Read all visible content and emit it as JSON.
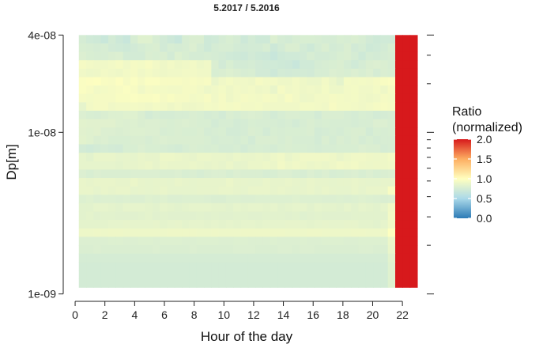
{
  "chart_data": {
    "type": "heatmap",
    "title": "5.2017 / 5.2016",
    "xlabel": "Hour of the day",
    "ylabel": "Dp[m]",
    "xlim": [
      -0.8,
      23.8
    ],
    "x_range": [
      0.25,
      23
    ],
    "x_ticks": [
      0,
      2,
      4,
      6,
      8,
      10,
      12,
      14,
      16,
      18,
      20,
      22
    ],
    "y_scale": "log",
    "ylim": [
      9e-10,
      4.7e-08
    ],
    "y_range": [
      1.1e-09,
      4e-08
    ],
    "y_ticks": [
      {
        "value": 4e-08,
        "label": "4e-08"
      },
      {
        "value": 1e-08,
        "label": "1e-08"
      },
      {
        "value": 1e-09,
        "label": "1e-09"
      }
    ],
    "grid": false,
    "colormap": "RdYlBu (reversed)",
    "colorscale": [
      {
        "value": 0.0,
        "color": "#2c7bb6"
      },
      {
        "value": 0.5,
        "color": "#abd9e9"
      },
      {
        "value": 1.0,
        "color": "#ffffbf"
      },
      {
        "value": 1.5,
        "color": "#fdae61"
      },
      {
        "value": 2.0,
        "color": "#d7191c"
      }
    ],
    "legend": {
      "title_line1": "Ratio",
      "title_line2": "(normalized)",
      "ticks": [
        "2.0",
        "1.5",
        "1.0",
        "0.5",
        "0.0"
      ],
      "range": [
        0,
        2
      ],
      "placement": "right"
    },
    "time_columns": 46,
    "size_rows": 30,
    "matrix_rows": [
      "4b4847444a46434c51514c4946434c4e4e47484b4d4b464a47474f4b4a4c4d4d4c4b4b4d4c4e4c49474848",
      "4d4c4b4c494847494b4d4e494c4b4c4f4b474b4c4c4a494a4a4c464a4e4e4a474b4e4a4b4e494b47484a4d",
      "4f4d4c4c4e4f4a4a4a4e4d4e4a504d4b4b4c4b4a48474649474643474848494c4a4a4b4d4e4b474b4a4b4c",
      "5e5c5b5b5c5e5b5e5d5f5c5a5c5a5b5c595b4e494d4a4a4b49484847464348484b4c4d4e4b484b4e4f4e4c",
      "5b595a5c5b5a5c5e5b5d5b5a5b5b5c5c5b5b4d4e504e4c4d4949464a494a4a494c4c4f4e4d4f4d4f4b4e4d",
      "616263605f625e615e61615f5f5f5e5f5e5f575b5d5b5b5a5e5c5c5a5a5c5a58585c58545d5c5d5c5e6061",
      "615f5c5d5e5f615f5b5e5d5d5c5c5e5e5c595b5d5a5c5b5c5a5b575e5b5c5a5b5a5d59595c5d5b5b5d5a5e",
      "5e5d5e5e5e6060616060615e605e5e5c5d5f5b5e5a5c5e5d5c5e5d5b5f5c595a5c5c5e5d5c5d5b5a5b5e5d",
      "555c5e5e5b5c5c5d5c5b5d5c5a5c5a5a5b5d5c5e5d5e5c5c5d5b5b5b5b5b5d5d5c5b5f5d5d5c5b5c5e5f5e",
      "4f4d4c4e505051514e4a4c4b4b4c4c4e4d4b4c4a4e4c4e4f4e4c4a4c4e4e4d4d4a4e4e4e4c4b4d4c4a4b4c",
      "5352525252504f504e4f4f4e4d4e4f4e4d4d4a4c4c4a4b4d4c4c4c4b4c4a4c4e4c4d4c4c4c4b4c4c4f4f4d",
      "5251524f4f4e4f50504f4f4c4d4e4d4d4e4b4c4d4a4a4b4e4d4a4d4c4d4d4d4e4a4b4c4b4d4e4e4a4d4c4d",
      "53514e4f4d4d4d4e4e4c4e4f4e4e4e4e4e4d4b4c4c4b4d4a4e4e4e4c4e4c4c4c4a4e4b4e4c4e4b4d4b4c4c",
      "4a484a4b4a494d4d4f4d4d4c4b4a4c4e4d4c4d4b4b4c4a4c4d4c4b4d4e4d4d4c4b4c4c4d4d4d4f4e4e4b4c",
      "5553575757555655575656595958575658585757565857575857595b57595b5b5b5b5a57595b5b5a595a5c",
      "5555555555545656575856585757575857565756585556585859585c595b5a5859585a5c5b5c5a595a5a5b",
      "4f4d4f4e4e4e4e4f4f4f4f4e4e4f4d4e4c4e4f4f4d4f4e4e4e4c4d4f4f4d4c4f4d4f4c4d4e4f4d4f4d4e4f",
      "57565757575656585655565655575655565656565856565555575656575655575656555656575655555656",
      "5757555756575755565556575555555556565657575655575757565756555657555756555557555757575f",
      "50514f50504f504f4f5150514f4f5050504f4e4e50504f4f5050505050515050504f4f504f5051504f4e4f",
      "5353555554535555555453555453545555555454535554555554555354555553555454535553555453555b",
      "5354525353525252535452535252525253525352525353525253535352535152535252525253535353535c",
      "5454545455555655555556545556545555545554555455555455555556565554555655555656545453555b",
      "59595a595a5a5959595959595a5a5a5a59595a5959595a5a5a5a5a5a5959595a5a595959595a5a59595a63",
      "4f4f4f4f50504f4f50504f5050504f4f5050504f4f50504f4f4f504f4f4f504f4f5050504f4f5050505058",
      "4e4e4f4e4e4e4e4e4e4e4f4e4e4e4e4f4e4e4e4e4e4f4f4f4e4e4e4f4f4e4f4f4e4e4e4e4e4e4f4f4e4e57",
      "4b4b4b4b4b4b4b4b4b4b4b4b4b4b4b4b4b4b4b4b4b4b4b4b4b4b4b4b4b4b4b4b4b4b4b4b4b4b4b4b4b4b53",
      "4a4a4a4a4a4a4a4a4a4a4a4a4a4a4a4a4a4a4a4a4a4a4a4a4a4a4a4a4a4a4a4a4a4a4a4a4a4a4a4a4a4a51",
      "4a4a4a4a4a4a4a4a4a4a4a4a4a4a4a4a4a4a4a4a4a4a4a4a4a4a4a4a4a4a4a4a4a4a4a4a4a4a4a4a4a4a51",
      "4a4a4a4a4a4a4a4a4a4a4a4a4a4a4a4a4a4a4a4a4a4a4a4a4a4a4a4a4a4a4a4a4a4a4a4a4a4a4a4a4a4a51"
    ]
  }
}
